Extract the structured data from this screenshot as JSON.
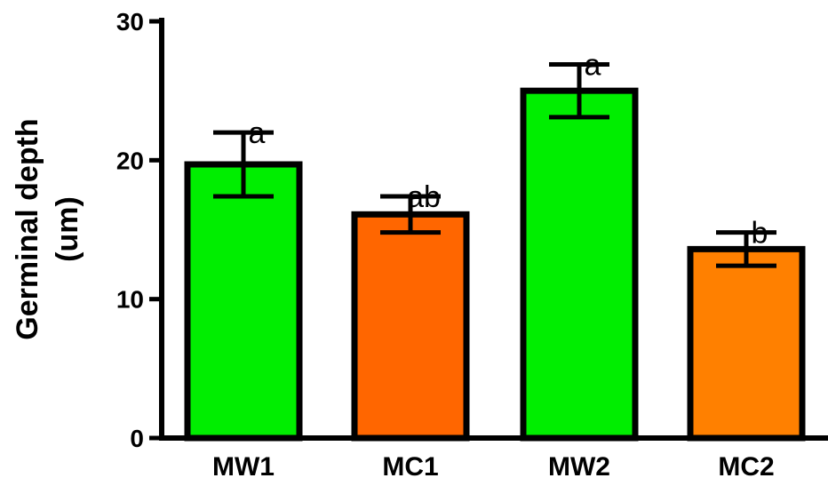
{
  "chart_data": {
    "type": "bar",
    "title": "",
    "xlabel": "",
    "ylabel_lines": [
      "Germinal depth",
      "(um)"
    ],
    "categories": [
      "MW1",
      "MC1",
      "MW2",
      "MC2"
    ],
    "values": [
      19.7,
      16.1,
      25.0,
      13.6
    ],
    "errors": [
      2.3,
      1.3,
      1.9,
      1.2
    ],
    "significance": [
      "a",
      "ab",
      "a",
      "b"
    ],
    "bar_colors": [
      "#00ee00",
      "#ff6600",
      "#00ee00",
      "#ff8000"
    ],
    "ylim": [
      0,
      30
    ],
    "yticks": [
      0,
      10,
      20,
      30
    ],
    "grid": false,
    "legend": "none"
  }
}
